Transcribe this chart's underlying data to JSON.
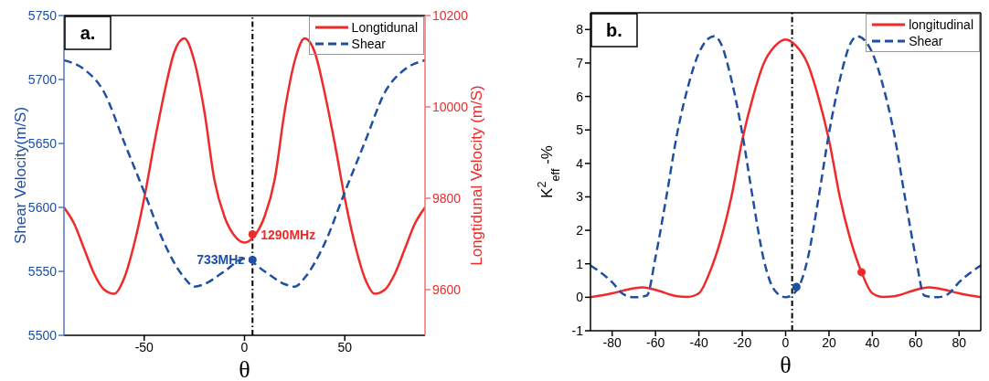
{
  "chart_data": [
    {
      "type": "line",
      "xlabel": "θ",
      "ylabel": "Shear Velocity(m/S)",
      "y2label": "Longtidunal Velocity (m/S)",
      "xlim": [
        -90,
        90
      ],
      "xticks": [
        -50,
        0,
        50
      ],
      "ylim": [
        5500,
        5750
      ],
      "yticks": [
        5500,
        5550,
        5600,
        5650,
        5700,
        5750
      ],
      "y2lim": [
        9500,
        10200
      ],
      "y2ticks": [
        9600,
        9800,
        10000,
        10200
      ],
      "legend": "top right",
      "grid": false,
      "series": [
        {
          "name": "Longtidunal",
          "color": "#ee2a2a",
          "axis": "y2",
          "line_style": "solid",
          "marker": "none",
          "x": [
            -90,
            -85,
            -80,
            -75,
            -70,
            -65,
            -60,
            -55,
            -50,
            -45,
            -40,
            -35,
            -30,
            -25,
            -20,
            -15,
            -10,
            -5,
            0,
            5,
            10,
            15,
            20,
            25,
            30,
            35,
            40,
            45,
            50,
            55,
            60,
            65,
            70,
            75,
            80,
            85,
            90
          ],
          "values": [
            9780,
            9745,
            9690,
            9635,
            9600,
            9591,
            9625,
            9700,
            9800,
            9920,
            10030,
            10120,
            10150,
            10100,
            9990,
            9840,
            9760,
            9718,
            9703,
            9718,
            9760,
            9840,
            9990,
            10100,
            10150,
            10120,
            10030,
            9920,
            9800,
            9700,
            9625,
            9591,
            9600,
            9635,
            9690,
            9745,
            9780
          ]
        },
        {
          "name": "Shear",
          "color": "#1f4fa0",
          "axis": "y",
          "line_style": "dashed",
          "marker": "none",
          "x": [
            -90,
            -80,
            -70,
            -60,
            -50,
            -40,
            -30,
            -25,
            -20,
            -10,
            0,
            10,
            20,
            25,
            30,
            40,
            50,
            60,
            70,
            80,
            90
          ],
          "values": [
            5715,
            5708,
            5690,
            5651,
            5612,
            5572,
            5545,
            5538,
            5540,
            5550,
            5560,
            5550,
            5540,
            5538,
            5545,
            5572,
            5612,
            5651,
            5690,
            5708,
            5715
          ]
        },
        {
          "type": "scatter",
          "color": "#ee2a2a",
          "axis": "y2",
          "marker": "circle",
          "x": [
            4
          ],
          "values": [
            9721
          ]
        },
        {
          "type": "scatter",
          "color": "#1f4fa0",
          "axis": "y",
          "marker": "circle",
          "x": [
            4
          ],
          "values": [
            5559
          ]
        }
      ],
      "ref_lines": [
        {
          "axis": "x",
          "value": 4,
          "color": "#000000"
        }
      ],
      "annotations": [
        "a.",
        "1290MHz",
        {
          "text": "733MHz",
          "x": 4,
          "y": 5559
        }
      ]
    },
    {
      "type": "line",
      "xlabel": "θ",
      "ylabel": "K$^{2}$$_{eff}$ -%",
      "xlim": [
        -90,
        90
      ],
      "xticks": [
        -80,
        -60,
        -40,
        -20,
        0,
        20,
        40,
        60,
        80
      ],
      "ylim": [
        -1,
        8.5
      ],
      "yticks": [
        -1,
        0,
        1,
        2,
        3,
        4,
        5,
        6,
        7,
        8
      ],
      "legend": "top right",
      "grid": false,
      "series": [
        {
          "name": "longitudinal",
          "color": "#ee2a2a",
          "line_style": "solid",
          "marker": "none",
          "x": [
            -90,
            -80,
            -70,
            -66,
            -60,
            -50,
            -45,
            -40,
            -35,
            -30,
            -25,
            -20,
            -15,
            -10,
            -5,
            0,
            5,
            10,
            15,
            20,
            25,
            30,
            35,
            40,
            45,
            50,
            60,
            66,
            70,
            80,
            90
          ],
          "values": [
            0,
            0.12,
            0.27,
            0.3,
            0.22,
            0.03,
            0.01,
            0.12,
            0.75,
            1.7,
            3.0,
            4.7,
            6.0,
            7.0,
            7.5,
            7.7,
            7.5,
            7.0,
            6.0,
            4.7,
            3.0,
            1.7,
            0.75,
            0.12,
            0.01,
            0.03,
            0.22,
            0.3,
            0.27,
            0.12,
            0
          ]
        },
        {
          "name": "Shear",
          "color": "#1f4fa0",
          "line_style": "dashed",
          "marker": "none",
          "x": [
            -90,
            -80,
            -75,
            -70,
            -64,
            -60,
            -55,
            -50,
            -45,
            -40,
            -33,
            -30,
            -25,
            -20,
            -15,
            -10,
            -5,
            0,
            5,
            10,
            15,
            20,
            25,
            30,
            33,
            40,
            45,
            50,
            55,
            60,
            64,
            70,
            75,
            80,
            90
          ],
          "values": [
            0.95,
            0.45,
            0.1,
            0,
            0.05,
            1.2,
            3.0,
            4.9,
            6.3,
            7.3,
            7.8,
            7.6,
            6.5,
            4.9,
            2.9,
            1.1,
            0.2,
            0,
            0.2,
            1.1,
            2.9,
            4.9,
            6.5,
            7.6,
            7.8,
            7.3,
            6.3,
            4.9,
            3.0,
            1.2,
            0.05,
            0,
            0.1,
            0.45,
            0.95
          ]
        },
        {
          "type": "scatter",
          "color": "#1f4fa0",
          "marker": "circle",
          "x": [
            5
          ],
          "values": [
            0.31
          ]
        },
        {
          "type": "scatter",
          "color": "#ee2a2a",
          "marker": "circle",
          "x": [
            35
          ],
          "values": [
            0.75
          ]
        }
      ],
      "ref_lines": [
        {
          "axis": "x",
          "value": 3,
          "color": "#000000"
        }
      ],
      "annotations": [
        "b."
      ]
    }
  ]
}
